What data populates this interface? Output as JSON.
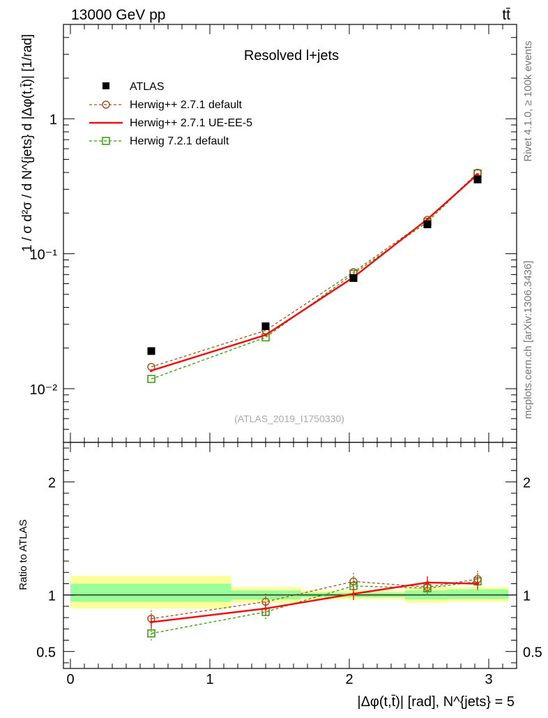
{
  "header": {
    "left": "13000 GeV pp",
    "right": "tt̄"
  },
  "side_labels": {
    "rivet": "Rivet 4.1.0, ≥ 100k events",
    "mcplots": "mcplots.cern.ch [arXiv:1306.3436]"
  },
  "chart_data": [
    {
      "type": "scatter",
      "panel": "main",
      "title": "Resolved l+jets",
      "watermark": "(ATLAS_2019_I1750330)",
      "ylabel": "1 / σ d²σ / d N^{jets} d |Δφ(t,t̄)| [1/rad]",
      "yscale": "log",
      "ylim": [
        0.004,
        5
      ],
      "xlim": [
        -0.05,
        3.2
      ],
      "ytick_labels": [
        "10⁻²",
        "10⁻¹",
        "1"
      ],
      "x": [
        0.58,
        1.4,
        2.03,
        2.56,
        2.92
      ],
      "series": [
        {
          "name": "ATLAS",
          "style": "data",
          "color": "#000000",
          "values": [
            0.019,
            0.029,
            0.066,
            0.165,
            0.355
          ]
        },
        {
          "name": "Herwig++ 2.7.1 default",
          "style": "dashed-circle",
          "color": "#a0541e",
          "values": [
            0.0145,
            0.027,
            0.073,
            0.178,
            0.398
          ]
        },
        {
          "name": "Herwig++ 2.7.1 UE-EE-5",
          "style": "solid",
          "color": "#ee1111",
          "values": [
            0.0136,
            0.025,
            0.067,
            0.18,
            0.387
          ]
        },
        {
          "name": "Herwig 7.2.1 default",
          "style": "dashed-square",
          "color": "#339900",
          "values": [
            0.0118,
            0.024,
            0.071,
            0.172,
            0.393
          ]
        }
      ]
    },
    {
      "type": "line",
      "panel": "ratio",
      "ylabel": "Ratio to ATLAS",
      "xlabel": "|Δφ(t,t̄)| [rad], N^{jets} = 5",
      "ylim": [
        0.35,
        2.35
      ],
      "xlim": [
        -0.05,
        3.2
      ],
      "xtick_labels": [
        "0",
        "1",
        "2",
        "3"
      ],
      "ytick_labels": [
        "0.5",
        "1",
        "2"
      ],
      "x": [
        0.58,
        1.4,
        2.03,
        2.56,
        2.92
      ],
      "bands": [
        {
          "x0": 0.0,
          "x1": 1.15,
          "yellow": [
            0.88,
            1.17
          ],
          "green": [
            0.94,
            1.1
          ]
        },
        {
          "x0": 1.15,
          "x1": 1.65,
          "yellow": [
            0.93,
            1.07
          ],
          "green": [
            0.96,
            1.04
          ]
        },
        {
          "x0": 1.65,
          "x1": 2.4,
          "yellow": [
            0.96,
            1.04
          ],
          "green": [
            0.98,
            1.02
          ]
        },
        {
          "x0": 2.4,
          "x1": 2.7,
          "yellow": [
            0.93,
            1.07
          ],
          "green": [
            0.96,
            1.04
          ]
        },
        {
          "x0": 2.7,
          "x1": 3.14,
          "yellow": [
            0.94,
            1.07
          ],
          "green": [
            0.965,
            1.05
          ]
        }
      ],
      "series": [
        {
          "name": "Herwig++ 2.7.1 default",
          "style": "dashed-circle",
          "color": "#a0541e",
          "values": [
            0.79,
            0.94,
            1.12,
            1.07,
            1.14
          ]
        },
        {
          "name": "Herwig++ 2.7.1 UE-EE-5",
          "style": "solid",
          "color": "#ee1111",
          "values": [
            0.76,
            0.88,
            1.01,
            1.11,
            1.1
          ]
        },
        {
          "name": "Herwig 7.2.1 default",
          "style": "dashed-square",
          "color": "#339900",
          "values": [
            0.66,
            0.85,
            1.08,
            1.06,
            1.12
          ]
        }
      ]
    }
  ]
}
